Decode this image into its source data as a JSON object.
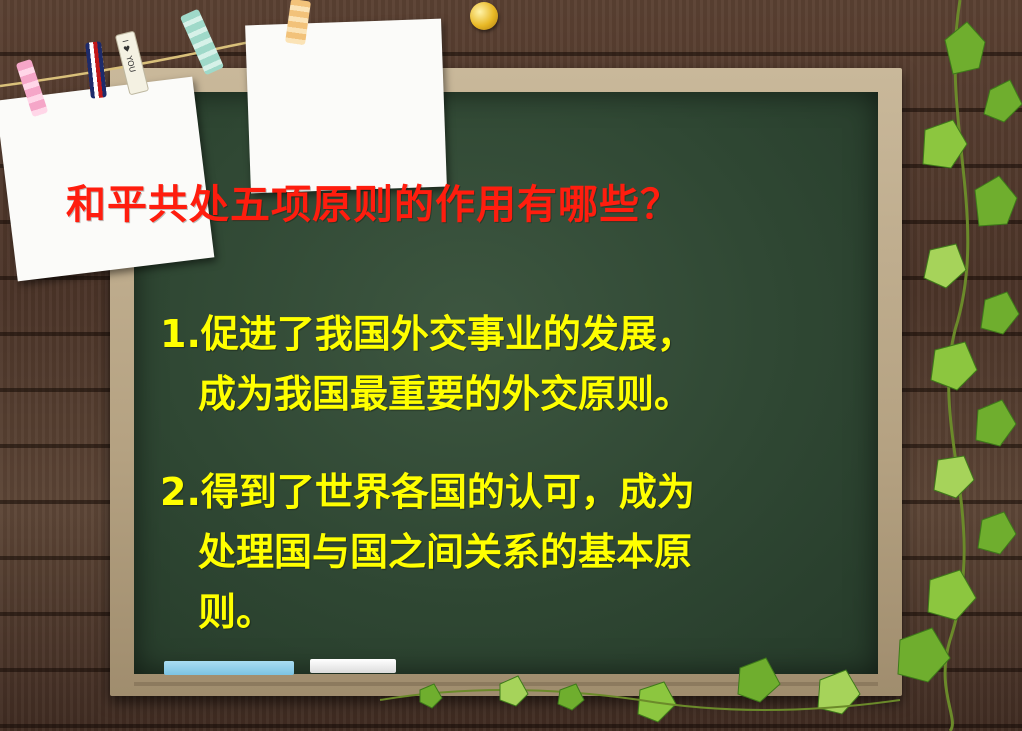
{
  "slide": {
    "title": "和平共处五项原则的作用有哪些？",
    "points": [
      {
        "lines": [
          "1.促进了我国外交事业的发展，",
          "成为我国最重要的外交原则。"
        ]
      },
      {
        "lines": [
          "2.得到了世界各国的认可，成为",
          "处理国与国之间关系的基本原",
          "则。"
        ]
      }
    ]
  },
  "decorations": {
    "clothespin_text": "I ♥ YOU"
  },
  "colors": {
    "title": "#ff1d0e",
    "body_text": "#ffff00",
    "board": "#2f4733",
    "frame": "#b5a282",
    "wood": "#4b3428"
  }
}
